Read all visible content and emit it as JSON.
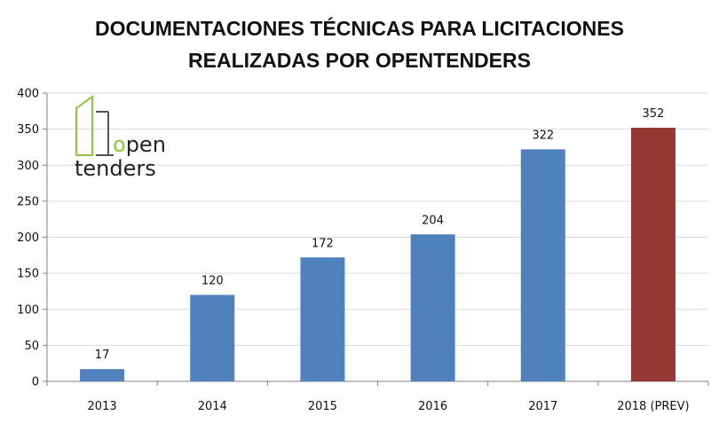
{
  "chart_data": {
    "type": "bar",
    "title_lines": [
      "DOCUMENTACIONES TÉCNICAS PARA LICITACIONES",
      "REALIZADAS POR OPENTENDERS"
    ],
    "categories": [
      "2013",
      "2014",
      "2015",
      "2016",
      "2017",
      "2018 (PREV)"
    ],
    "values": [
      17,
      120,
      172,
      204,
      322,
      352
    ],
    "data_labels": [
      "17",
      "120",
      "172",
      "204",
      "322",
      "352"
    ],
    "bar_colors": [
      "#4f81bd",
      "#4f81bd",
      "#4f81bd",
      "#4f81bd",
      "#4f81bd",
      "#953735"
    ],
    "ylim": [
      0,
      400
    ],
    "yticks": [
      0,
      50,
      100,
      150,
      200,
      250,
      300,
      350,
      400
    ],
    "grid": true,
    "gridline_color": "#d9d9d9",
    "xlabel": "",
    "ylabel": ""
  },
  "logo": {
    "line1_prefix": "o",
    "line1_rest": "pen",
    "line2": "tenders",
    "accent_color": "#8dc63f"
  }
}
